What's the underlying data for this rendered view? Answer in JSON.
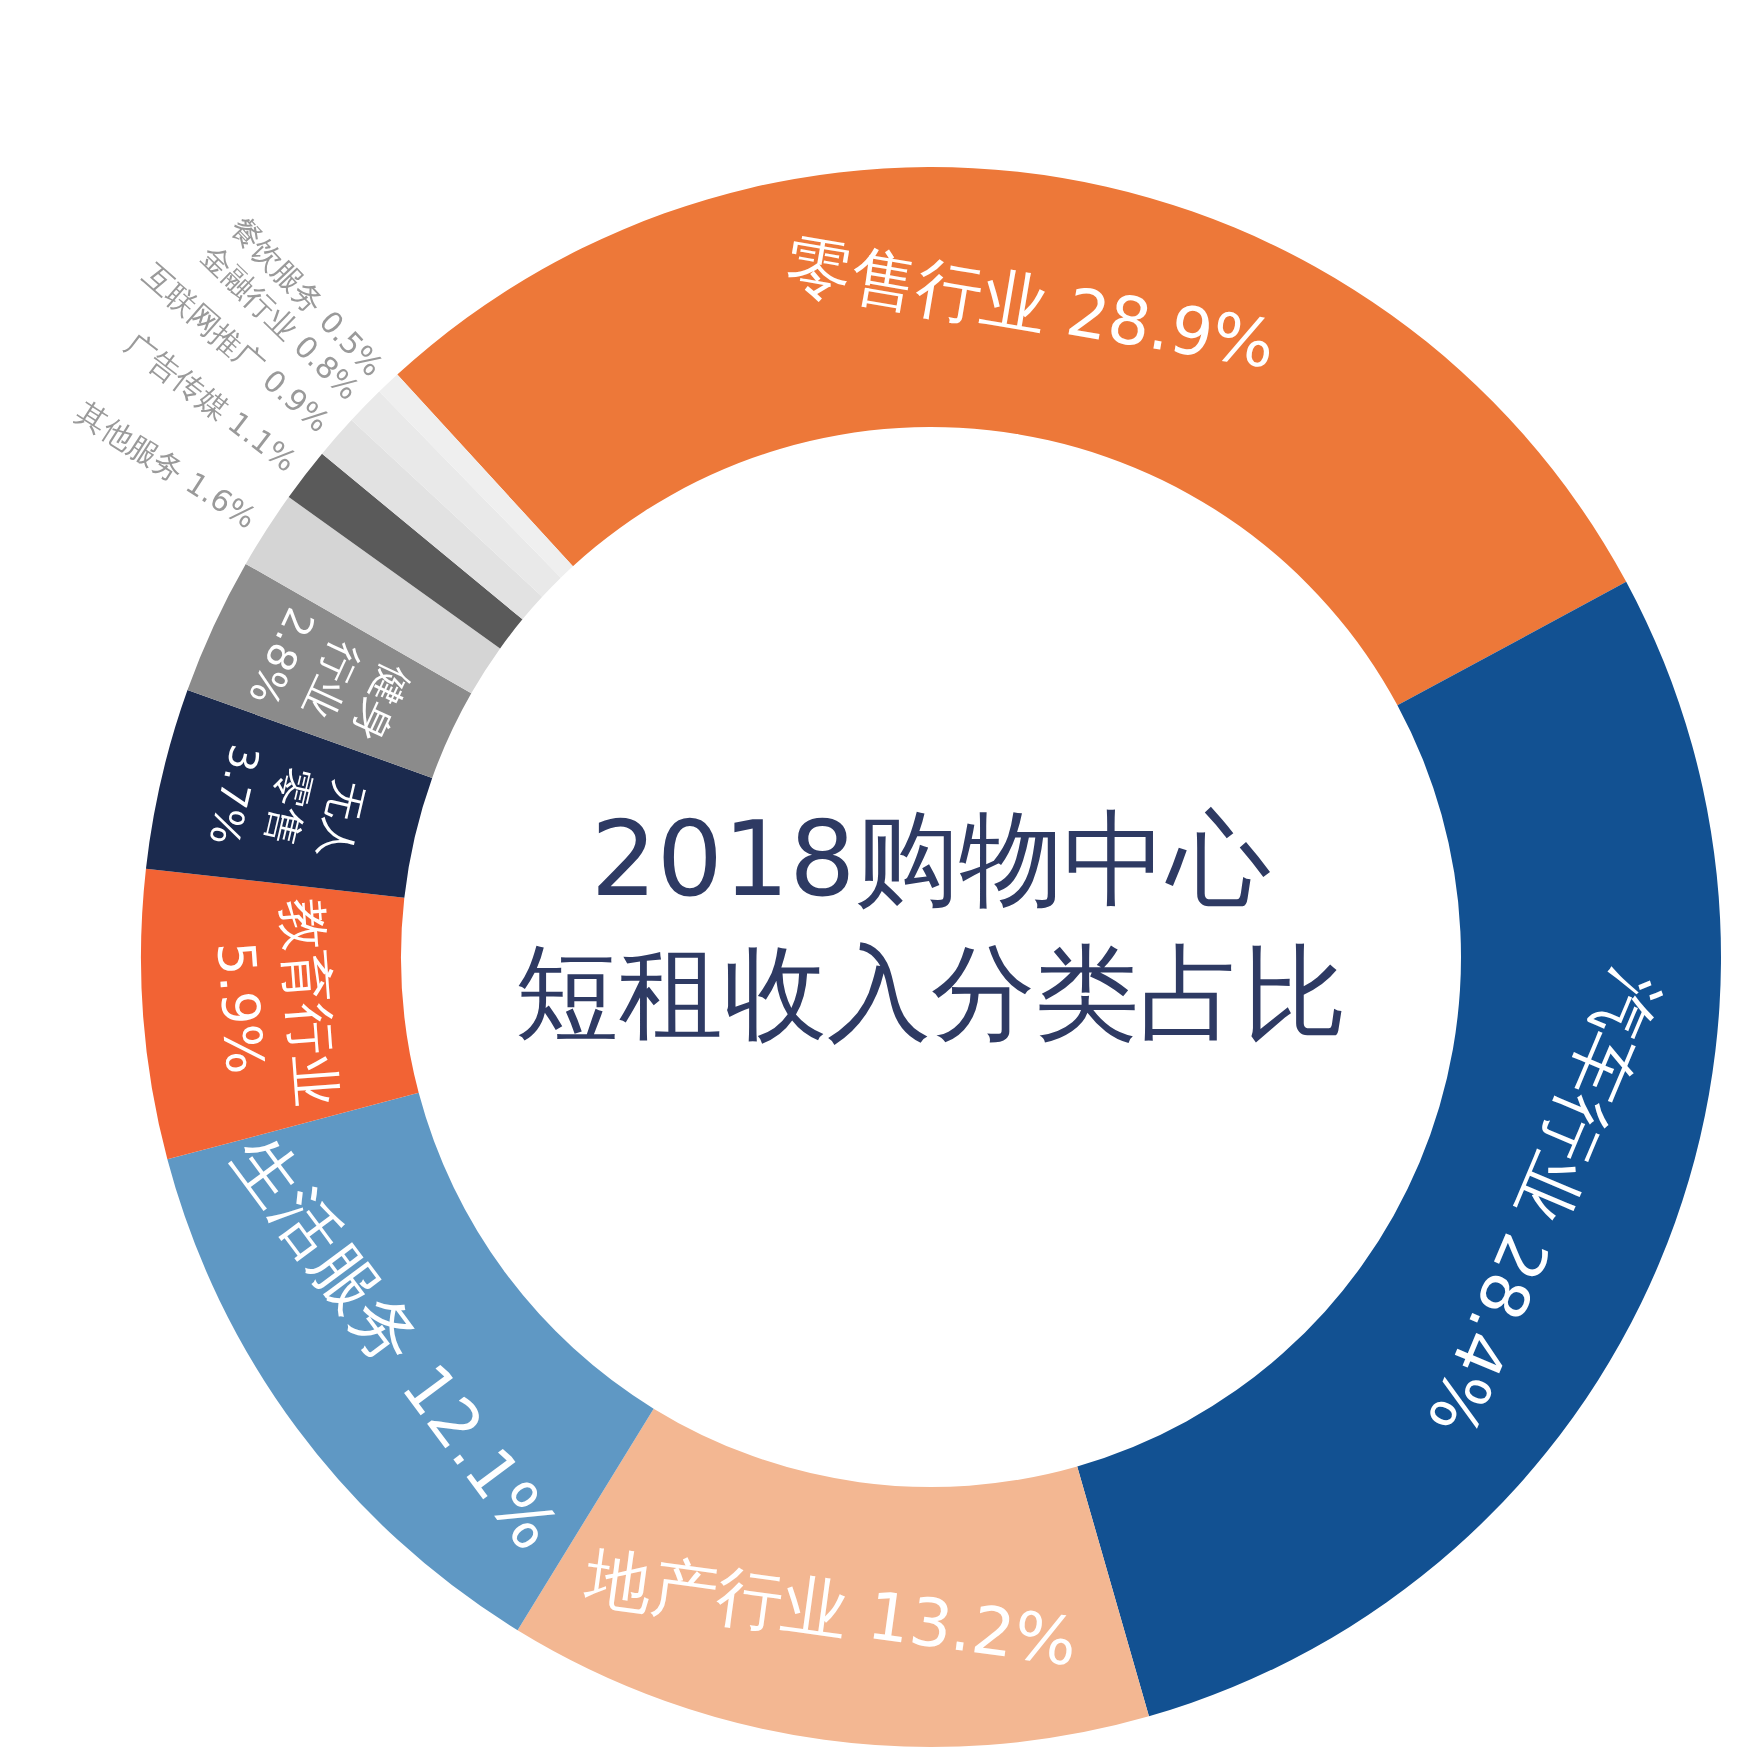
{
  "chart_data": {
    "type": "donut",
    "title": "2018购物中心",
    "subtitle": "短租收入分类占比",
    "categories": [
      "零售行业",
      "汽车行业",
      "地产行业",
      "生活服务",
      "教育行业",
      "无人零售",
      "健身行业",
      "其他服务",
      "广告传媒",
      "互联网推广",
      "金融行业",
      "餐饮服务"
    ],
    "values": [
      28.9,
      28.4,
      13.2,
      12.1,
      5.9,
      3.7,
      2.8,
      1.6,
      1.1,
      0.9,
      0.8,
      0.5
    ],
    "value_labels": [
      "28.9%",
      "28.4%",
      "13.2%",
      "12.1%",
      "5.9%",
      "3.7%",
      "2.8%",
      "1.6%",
      "1.1%",
      "0.9%",
      "0.8%",
      "0.5%"
    ],
    "colors": [
      "#ed7839",
      "#125192",
      "#f3b792",
      "#5f98c4",
      "#f26334",
      "#1b2a4e",
      "#8b8b8b",
      "#d5d5d5",
      "#5a5a5a",
      "#e2e2e2",
      "#e9e9e9",
      "#efefef"
    ]
  }
}
